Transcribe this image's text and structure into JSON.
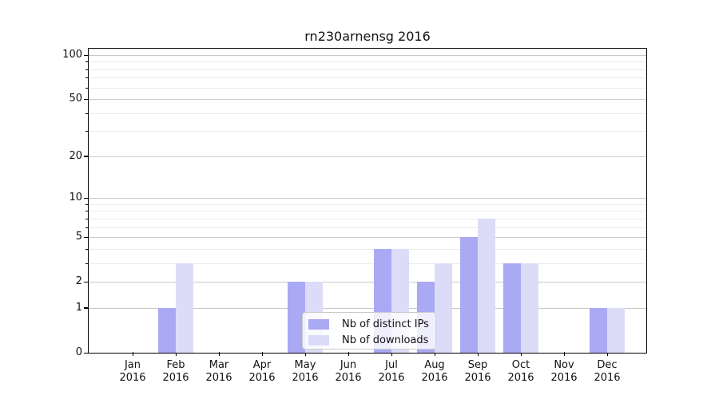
{
  "chart_data": {
    "type": "bar",
    "title": "rn230arnensg 2016",
    "x": [
      "Jan",
      "Feb",
      "Mar",
      "Apr",
      "May",
      "Jun",
      "Jul",
      "Aug",
      "Sep",
      "Oct",
      "Nov",
      "Dec"
    ],
    "x_year": "2016",
    "series": [
      {
        "name": "Nb of distinct IPs",
        "color": "#a9a9f4",
        "values": [
          0,
          1,
          0,
          0,
          2,
          0,
          4,
          2,
          5,
          3,
          0,
          1
        ]
      },
      {
        "name": "Nb of downloads",
        "color": "#dcdcf8",
        "values": [
          0,
          3,
          0,
          0,
          2,
          0,
          4,
          3,
          7,
          3,
          0,
          1
        ]
      }
    ],
    "y_scale": "log1p",
    "y_major_ticks": [
      0,
      1,
      2,
      5,
      10,
      20,
      50,
      100
    ],
    "y_minor_ticks": [
      3,
      4,
      6,
      7,
      8,
      9,
      30,
      40,
      60,
      70,
      80,
      90
    ],
    "ylim": [
      0,
      113
    ],
    "xlabel": "",
    "ylabel": "",
    "grid": "horizontal",
    "legend_position": "lower center"
  },
  "colors": {
    "bar_dark": "#a9a9f4",
    "bar_light": "#dcdcf8",
    "grid_major": "#c9c9c9",
    "grid_minor": "#ebebeb",
    "axis": "#000000",
    "legend_border": "#cbcbcb"
  }
}
